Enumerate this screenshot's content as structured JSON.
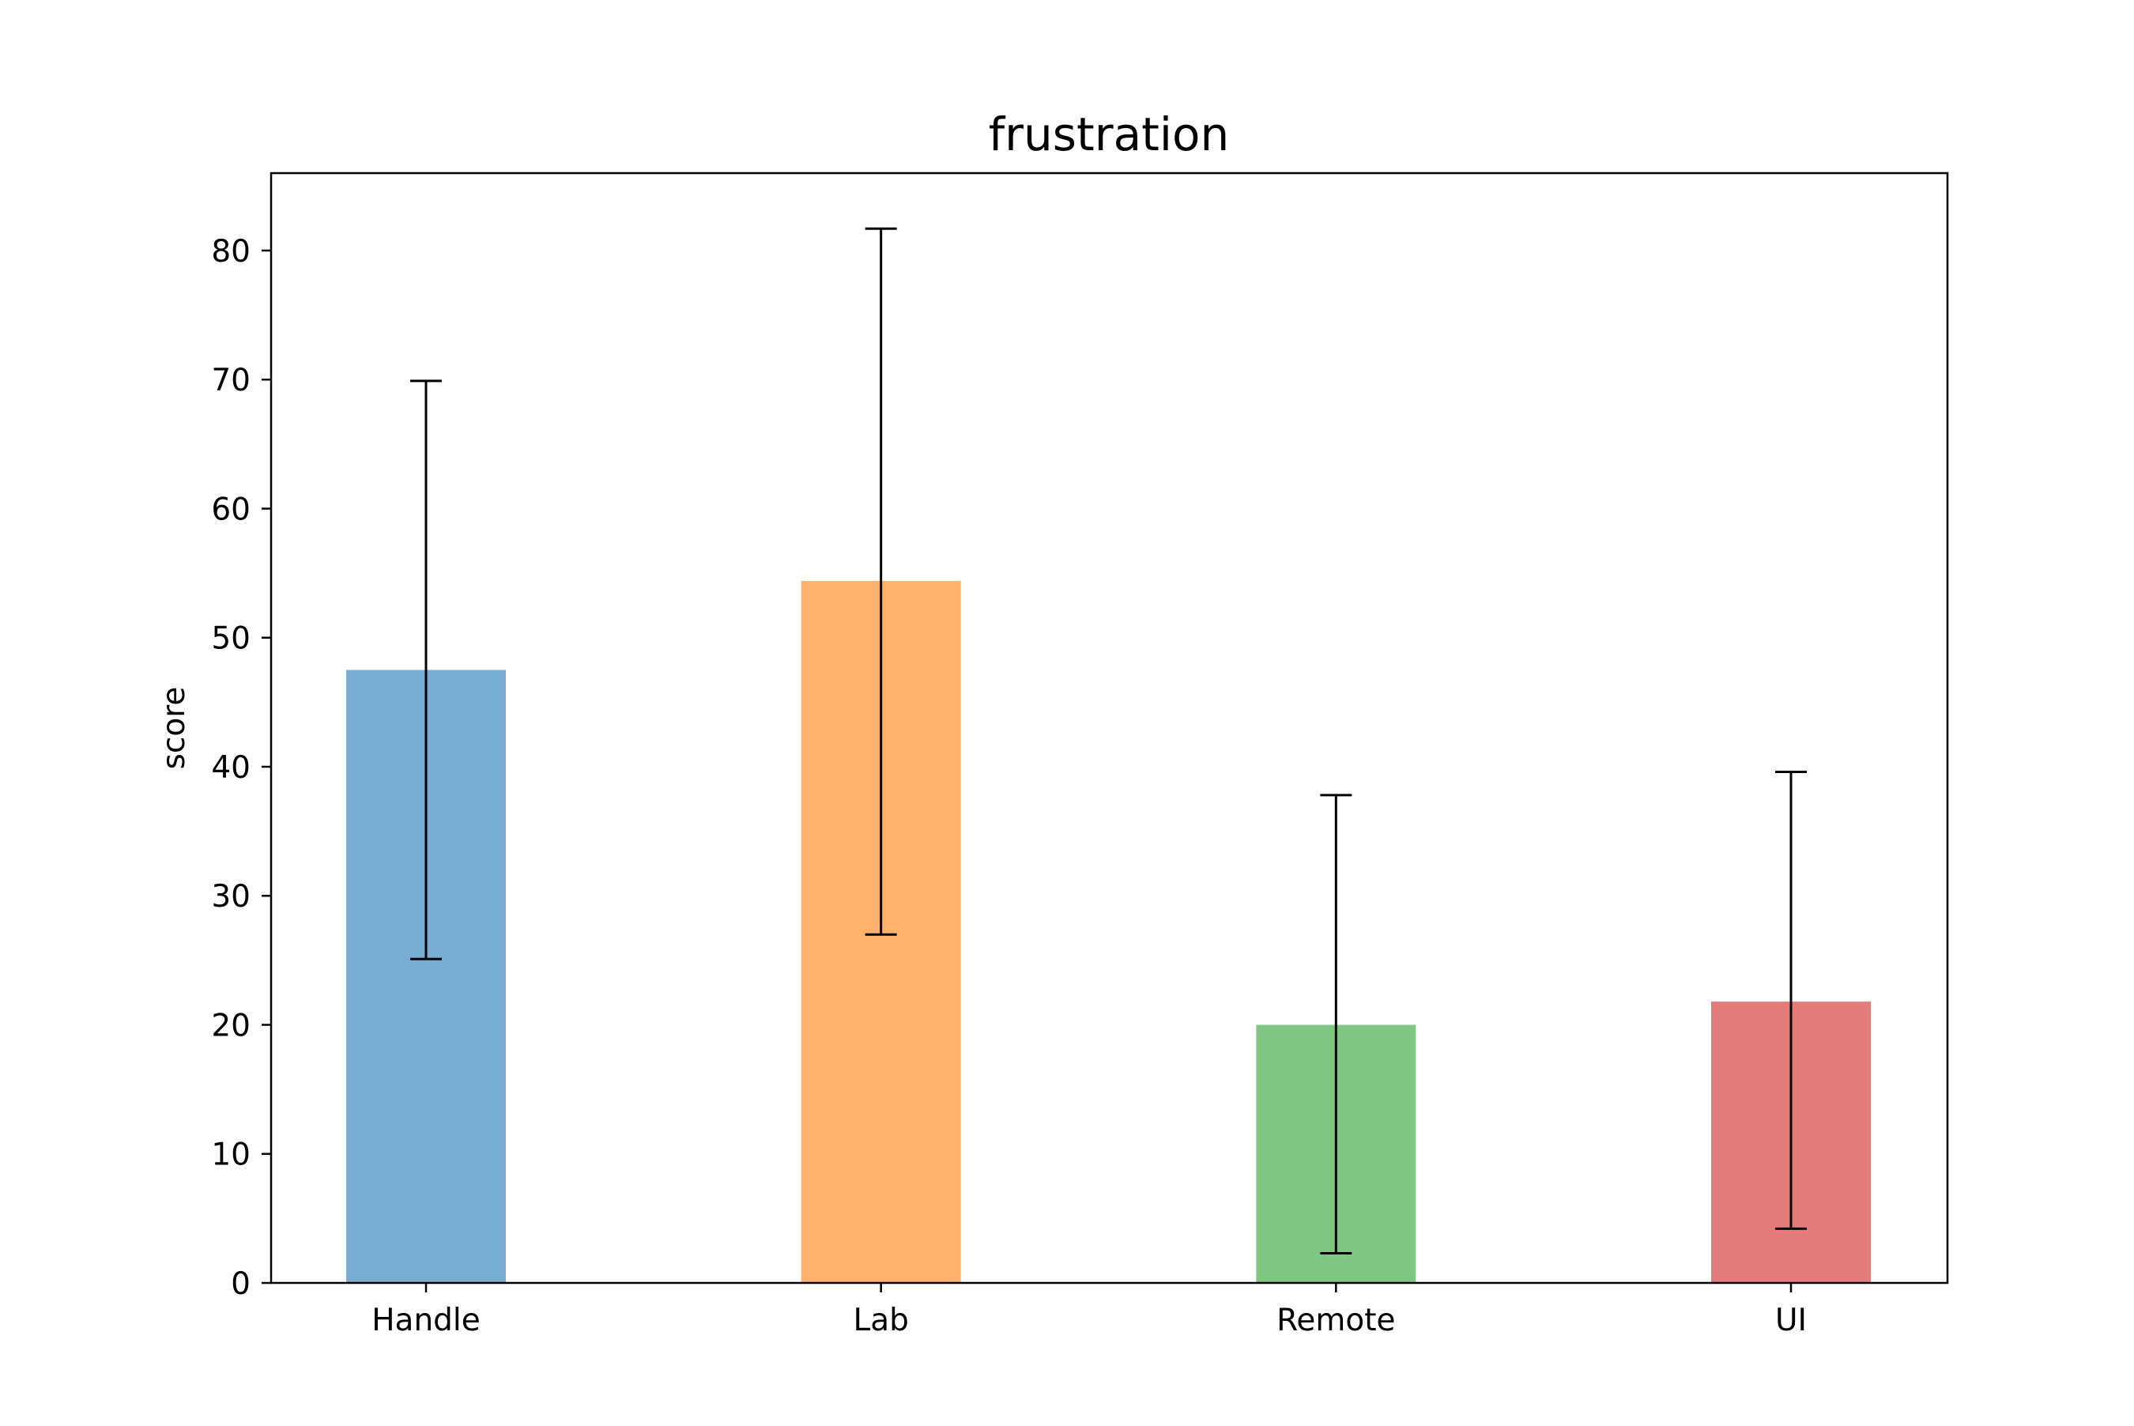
{
  "chart_data": {
    "type": "bar",
    "title": "frustration",
    "xlabel": "",
    "ylabel": "score",
    "categories": [
      "Handle",
      "Lab",
      "Remote",
      "UI"
    ],
    "values": [
      47.5,
      54.4,
      20.0,
      21.8
    ],
    "error_low": [
      25.1,
      27.0,
      2.3,
      4.2
    ],
    "error_high": [
      69.9,
      81.7,
      37.8,
      39.6
    ],
    "colors": [
      "#7aadd3",
      "#ffb26e",
      "#81c784",
      "#e57c7c"
    ],
    "ylim": [
      0,
      86
    ],
    "yticks": [
      0,
      10,
      20,
      30,
      40,
      50,
      60,
      70,
      80
    ],
    "ytick_labels": [
      "0",
      "10",
      "20",
      "30",
      "40",
      "50",
      "60",
      "70",
      "80"
    ],
    "grid": false,
    "legend": "none"
  }
}
